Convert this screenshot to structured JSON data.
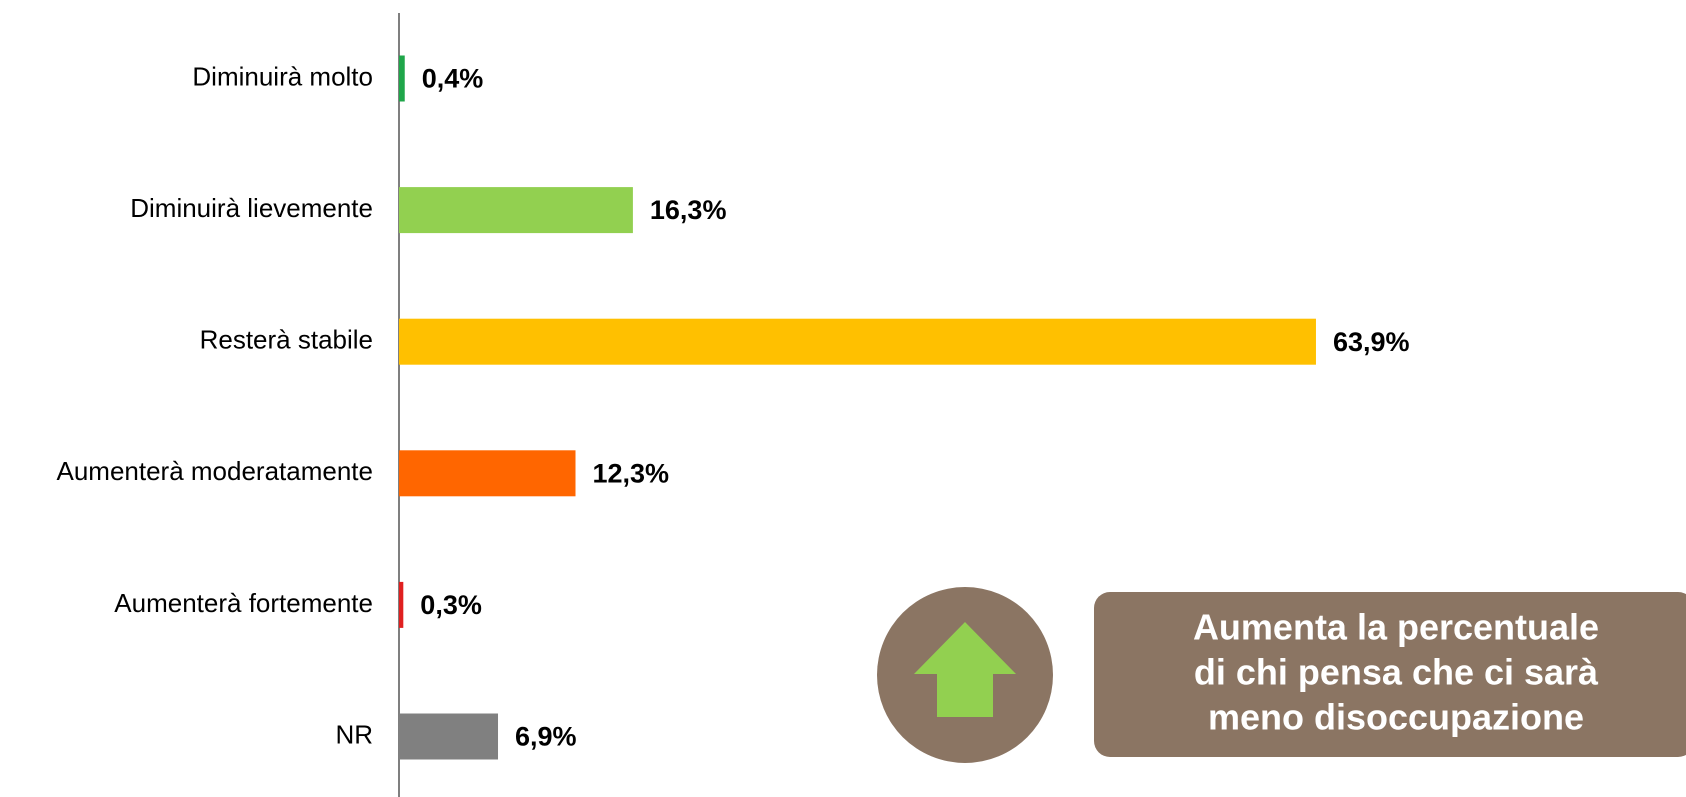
{
  "chart_data": {
    "type": "barh",
    "categories": [
      "Diminuirà molto",
      "Diminuirà lievemente",
      "Resterà stabile",
      "Aumenterà moderatamente",
      "Aumenterà fortemente",
      "NR"
    ],
    "values": [
      0.4,
      16.3,
      63.9,
      12.3,
      0.3,
      6.9
    ],
    "value_labels": [
      "0,4%",
      "16,3%",
      "63,9%",
      "12,3%",
      "0,3%",
      "6,9%"
    ],
    "colors": [
      "#1fa64a",
      "#92d050",
      "#ffc000",
      "#ff6600",
      "#e02020",
      "#808080"
    ],
    "annotation": [
      "Aumenta la percentuale",
      "di chi pensa che ci sarà",
      "meno disoccupazione"
    ]
  }
}
